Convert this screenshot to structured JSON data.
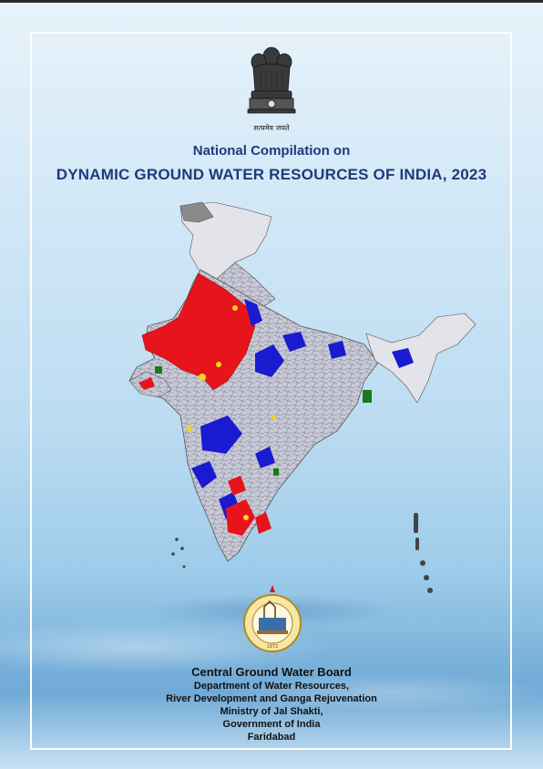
{
  "emblem": {
    "motto": "सत्यमेव जयते",
    "icon": "national-emblem-icon"
  },
  "title": {
    "line1": "National Compilation on",
    "line2": "DYNAMIC GROUND WATER RESOURCES OF INDIA, 2023"
  },
  "map": {
    "icon": "india-groundwater-map",
    "colors": {
      "over_exploited": "#e8141b",
      "critical": "#f2d61c",
      "semi_critical": "#1a1ad0",
      "safe": "#c8c9d6",
      "saline": "#1c7a1c",
      "not_assessed": "#8a8a8a"
    }
  },
  "seal": {
    "text": "CENTRAL GROUND WATER BOARD",
    "year": "1972",
    "icon": "cgwb-seal-icon"
  },
  "publisher": {
    "org": "Central Ground Water Board",
    "lines": [
      "Department of Water Resources,",
      "River Development and Ganga Rejuvenation",
      "Ministry of Jal Shakti,",
      "Government of India",
      "Faridabad"
    ]
  }
}
